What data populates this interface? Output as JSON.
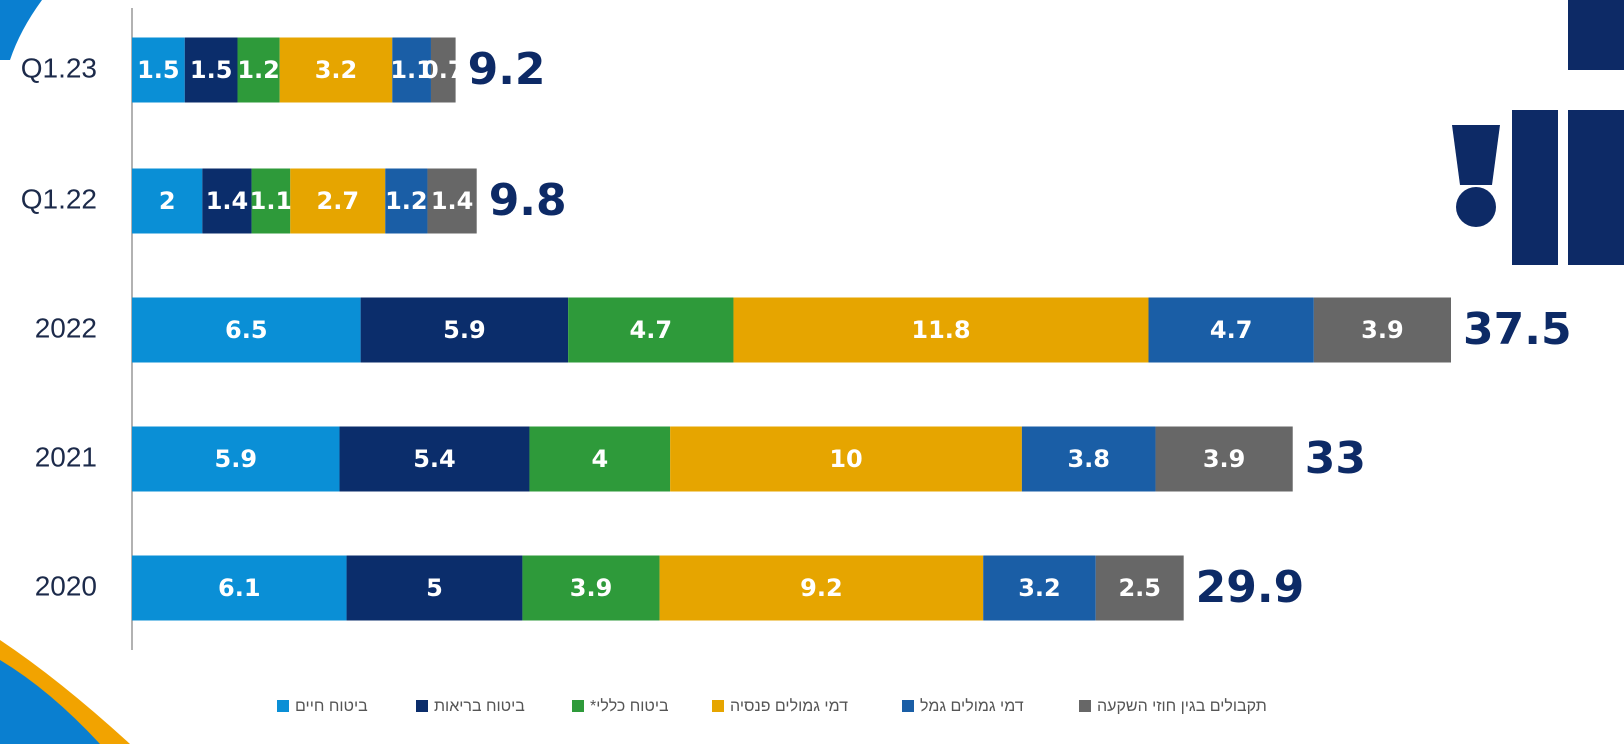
{
  "chart_data": {
    "type": "stacked-bar",
    "categories": [
      "Q1.23",
      "Q1.22",
      "2022",
      "2021",
      "2020"
    ],
    "series": [
      {
        "name": "ביטוח חיים",
        "color": "#0a8fd6",
        "values": [
          1.5,
          2,
          6.5,
          5.9,
          6.1
        ]
      },
      {
        "name": "ביטוח בריאות",
        "color": "#0b2d6b",
        "values": [
          1.5,
          1.4,
          5.9,
          5.4,
          5
        ]
      },
      {
        "name": "ביטוח כללי*",
        "color": "#2e9a3a",
        "values": [
          1.2,
          1.1,
          4.7,
          4,
          3.9
        ]
      },
      {
        "name": "דמי גמולים פנסיה",
        "color": "#e6a500",
        "values": [
          3.2,
          2.7,
          11.8,
          10,
          9.2
        ]
      },
      {
        "name": "דמי גמולים גמל",
        "color": "#1a5ea6",
        "values": [
          1.1,
          1.2,
          4.7,
          3.8,
          3.2
        ]
      },
      {
        "name": "תקבולים בגין חוזי השקעה",
        "color": "#676767",
        "values": [
          0.7,
          1.4,
          3.9,
          3.9,
          2.5
        ]
      }
    ],
    "totals": [
      9.2,
      9.8,
      37.5,
      33,
      29.9
    ],
    "xlim": [
      0,
      37.5
    ]
  }
}
